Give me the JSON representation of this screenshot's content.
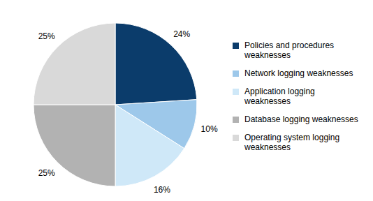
{
  "chart_data": {
    "type": "pie",
    "categories": [
      "Policies and procedures weaknesses",
      "Network logging weaknesses",
      "Application logging weaknesses",
      "Database logging weaknesses",
      "Operating system logging weaknesses"
    ],
    "values": [
      24,
      10,
      16,
      25,
      25
    ],
    "value_labels": [
      "24%",
      "10%",
      "16%",
      "25%",
      "25%"
    ],
    "colors": [
      "#0b3c6b",
      "#9dc8ea",
      "#cfe8f8",
      "#b2b2b2",
      "#d9d9d9"
    ],
    "data_labels": true,
    "legend": "right"
  }
}
